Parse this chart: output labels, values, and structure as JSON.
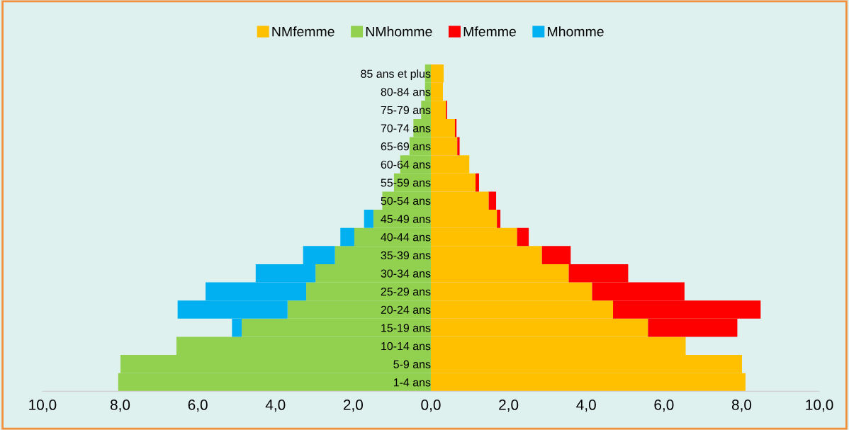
{
  "chart_data": [
    {
      "type": "bar",
      "orientation": "horizontal",
      "stacked": true,
      "legend": "top",
      "categories": [
        "85 ans et plus",
        "80-84 ans",
        "75-79 ans",
        "70-74 ans",
        "65-69 ans",
        "60-64 ans",
        "55-59 ans",
        "50-54 ans",
        "45-49 ans",
        "40-44 ans",
        "35-39 ans",
        "30-34 ans",
        "25-29 ans",
        "20-24 ans",
        "15-19 ans",
        "10-14 ans",
        "5-9 ans",
        "1-4 ans"
      ],
      "series": [
        {
          "name": "NMhomme",
          "color": "#92d050",
          "values": [
            0.15,
            0.15,
            0.25,
            0.45,
            0.55,
            0.79,
            0.95,
            1.25,
            1.48,
            1.97,
            2.47,
            2.97,
            3.21,
            3.69,
            4.87,
            6.55,
            7.99,
            8.05
          ]
        },
        {
          "name": "Mhomme",
          "color": "#00b0f0",
          "values": [
            0,
            0,
            0,
            0,
            0,
            0,
            0,
            0,
            0.24,
            0.36,
            0.82,
            1.54,
            2.59,
            2.83,
            0.25,
            0,
            0,
            0
          ]
        }
      ],
      "xlim": [
        10,
        0
      ],
      "xticks": [
        {
          "value": 10,
          "label": "10,0"
        },
        {
          "value": 8,
          "label": "8,0"
        },
        {
          "value": 6,
          "label": "6,0"
        },
        {
          "value": 4,
          "label": "4,0"
        },
        {
          "value": 2,
          "label": "2,0"
        }
      ]
    },
    {
      "type": "bar",
      "orientation": "horizontal",
      "stacked": true,
      "legend": "top",
      "tick_labels": "x",
      "categories": [
        null,
        null,
        null,
        null,
        null,
        null,
        null,
        null,
        null,
        null,
        null,
        null,
        null,
        null,
        null,
        null,
        null,
        null
      ],
      "series": [
        {
          "name": "NMfemme",
          "color": "#ffc000",
          "values": [
            0.33,
            0.31,
            0.39,
            0.62,
            0.68,
            0.99,
            1.15,
            1.49,
            1.7,
            2.22,
            2.86,
            3.55,
            4.15,
            4.69,
            5.59,
            6.56,
            8.01,
            8.1
          ]
        },
        {
          "name": "Mfemme",
          "color": "#ff0000",
          "values": [
            0,
            0,
            0.03,
            0.04,
            0.06,
            0,
            0.09,
            0.19,
            0.09,
            0.3,
            0.74,
            1.53,
            2.38,
            3.8,
            2.3,
            0,
            0,
            0
          ]
        }
      ],
      "xlim": [
        0,
        10
      ],
      "xticks": [
        {
          "value": 0,
          "label": "0,0"
        },
        {
          "value": 2,
          "label": "2,0"
        },
        {
          "value": 4,
          "label": "4,0"
        },
        {
          "value": 6,
          "label": "6,0"
        },
        {
          "value": 8,
          "label": "8,0"
        },
        {
          "value": 10,
          "label": "10,0"
        }
      ]
    }
  ]
}
